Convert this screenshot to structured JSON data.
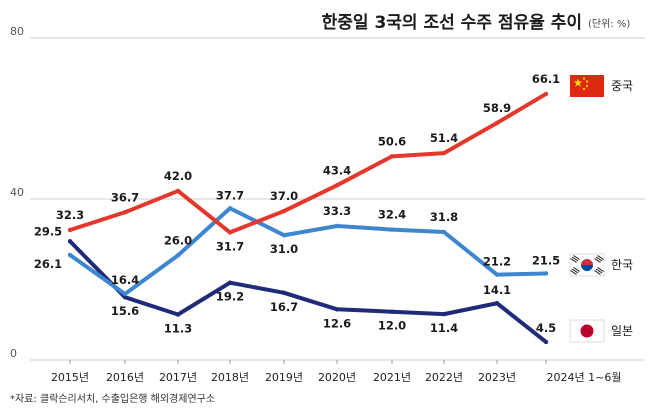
{
  "chart_data": {
    "type": "line",
    "title": "한중일 3국의 조선 수주 점유율 추이",
    "unit": "(단위: %)",
    "categories": [
      "2015년",
      "2016년",
      "2017년",
      "2018년",
      "2019년",
      "2020년",
      "2021년",
      "2022년",
      "2023년",
      "2024년 1~6월"
    ],
    "ylim": [
      0,
      80
    ],
    "yticks": [
      0,
      40,
      80
    ],
    "grid": true,
    "legend": "right",
    "series": [
      {
        "name": "중국",
        "color": "#e5372b",
        "flag": "china-flag-icon",
        "values": [
          32.3,
          36.7,
          42.0,
          31.7,
          37.0,
          43.4,
          50.6,
          51.4,
          58.9,
          66.1
        ]
      },
      {
        "name": "한국",
        "color": "#3f86d1",
        "flag": "korea-flag-icon",
        "values": [
          26.1,
          16.4,
          26.0,
          37.7,
          31.0,
          33.3,
          32.4,
          31.8,
          21.2,
          21.5
        ]
      },
      {
        "name": "일본",
        "color": "#1f2a78",
        "flag": "japan-flag-icon",
        "values": [
          29.5,
          15.6,
          11.3,
          19.2,
          16.7,
          12.6,
          12.0,
          11.4,
          14.1,
          4.5
        ]
      }
    ],
    "source": "*자료: 클락슨리서치, 수출입은행 해외경제연구소"
  }
}
